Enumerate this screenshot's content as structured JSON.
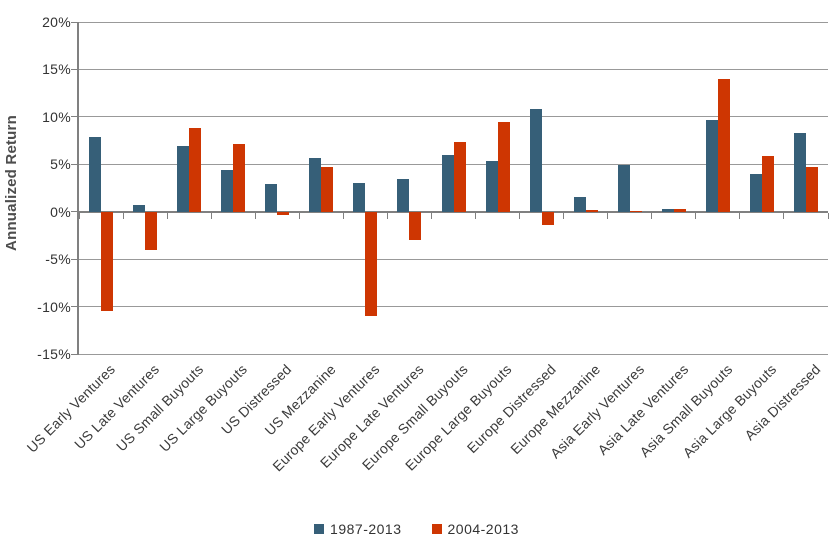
{
  "chart_data": {
    "type": "bar",
    "title": "",
    "ylabel": "Annualized Return",
    "ylim": [
      -15,
      20
    ],
    "ytick_step": 5,
    "yticks": [
      "20%",
      "15%",
      "10%",
      "5%",
      "0%",
      "-5%",
      "-10%",
      "-15%"
    ],
    "grid": true,
    "legend_position": "bottom-center",
    "categories": [
      "US Early Ventures",
      "US Late Ventures",
      "US Small Buyouts",
      "US Large Buyouts",
      "US Distressed",
      "US Mezzanine",
      "Europe Early Ventures",
      "Europe Late Ventures",
      "Europe Small Buyouts",
      "Europe Large Buyouts",
      "Europe Distressed",
      "Europe Mezzanine",
      "Asia Early Ventures",
      "Asia Late Ventures",
      "Asia Small Buyouts",
      "Asia Large Buyouts",
      "Asia Distressed"
    ],
    "series": [
      {
        "name": "1987-2013",
        "color": "#365F78",
        "values": [
          7.9,
          0.7,
          6.9,
          4.4,
          2.9,
          5.7,
          3.0,
          3.4,
          6.0,
          5.3,
          10.8,
          1.6,
          4.9,
          0.3,
          9.7,
          4.0,
          8.3
        ]
      },
      {
        "name": "2004-2013",
        "color": "#CE3602",
        "values": [
          -10.5,
          -4.0,
          8.8,
          7.1,
          -0.4,
          4.7,
          -11.0,
          -3.0,
          7.3,
          9.5,
          -1.4,
          0.2,
          0.1,
          0.3,
          14.0,
          5.9,
          4.7
        ]
      }
    ]
  },
  "colors": {
    "background": "#FFFFFF",
    "gridline": "#999999",
    "axis": "#808080",
    "tick_label": "#333333",
    "axis_title": "#4D4D4D"
  }
}
